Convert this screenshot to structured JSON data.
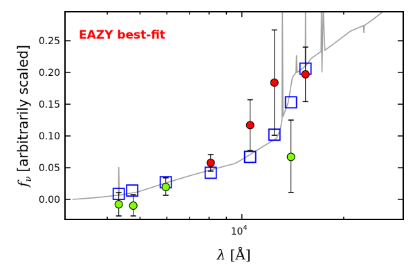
{
  "chart_data": {
    "type": "scatter",
    "annotation": "EAZY best-fit",
    "xlabel": "λ [Å]",
    "xlabel_symbol": "λ",
    "xlabel_unit": "[Å]",
    "ylabel": "f_ν [arbitrarily scaled]",
    "ylabel_symbol": "f",
    "ylabel_sub": "ν",
    "ylabel_text": "[arbitrarily scaled]",
    "xscale": "log",
    "xlim": [
      3000,
      30000
    ],
    "ylim": [
      -0.0315,
      0.2957
    ],
    "x_major_ticks": [
      {
        "value": 10000,
        "base": "10",
        "exp": "4"
      }
    ],
    "x_minor_ticks": [
      4000,
      5000,
      6000,
      7000,
      8000,
      9000,
      20000
    ],
    "y_ticks": [
      {
        "value": 0.0,
        "label": "0.00"
      },
      {
        "value": 0.05,
        "label": "0.05"
      },
      {
        "value": 0.1,
        "label": "0.10"
      },
      {
        "value": 0.15,
        "label": "0.15"
      },
      {
        "value": 0.2,
        "label": "0.20"
      },
      {
        "value": 0.25,
        "label": "0.25"
      }
    ],
    "colors": {
      "spectrum": "#a0a0a0",
      "model": "#0000ff",
      "detected": "#ff0000",
      "low": "#7fff00"
    },
    "spectrum": [
      [
        3155,
        0
      ],
      [
        3722,
        0.003
      ],
      [
        4285,
        0.0065
      ],
      [
        4320,
        0.0065
      ],
      [
        4325,
        0.051
      ],
      [
        4340,
        0.0065
      ],
      [
        4932,
        0.012
      ],
      [
        5957,
        0.026
      ],
      [
        7194,
        0.039
      ],
      [
        8283,
        0.048
      ],
      [
        9540,
        0.0565
      ],
      [
        10238,
        0.066
      ],
      [
        11514,
        0.083
      ],
      [
        12650,
        0.096
      ],
      [
        12950,
        0.108
      ],
      [
        13140,
        0.124
      ],
      [
        13180,
        0.3
      ],
      [
        13230,
        0.13
      ],
      [
        13710,
        0.153
      ],
      [
        14100,
        0.192
      ],
      [
        14450,
        0.2
      ],
      [
        14510,
        0.227
      ],
      [
        14560,
        0.2
      ],
      [
        15000,
        0.205
      ],
      [
        15400,
        0.21
      ],
      [
        15420,
        0.3
      ],
      [
        15450,
        0.21
      ],
      [
        16010,
        0.222
      ],
      [
        17150,
        0.233
      ],
      [
        17190,
        0.3
      ],
      [
        17250,
        0.2
      ],
      [
        17400,
        0.3
      ],
      [
        17600,
        0.235
      ],
      [
        18450,
        0.243
      ],
      [
        20940,
        0.265
      ],
      [
        22900,
        0.274
      ],
      [
        22950,
        0.262
      ],
      [
        23010,
        0.274
      ],
      [
        24480,
        0.284
      ],
      [
        26010,
        0.295
      ]
    ],
    "model_photometry": [
      {
        "x": 4325,
        "y": 0.0087
      },
      {
        "x": 4740,
        "y": 0.014
      },
      {
        "x": 5957,
        "y": 0.027
      },
      {
        "x": 8090,
        "y": 0.042
      },
      {
        "x": 10580,
        "y": 0.067
      },
      {
        "x": 12480,
        "y": 0.102
      },
      {
        "x": 13970,
        "y": 0.153
      },
      {
        "x": 15420,
        "y": 0.206
      }
    ],
    "observed": [
      {
        "x": 4325,
        "y": -0.0076,
        "lo": -0.026,
        "hi": 0.011,
        "kind": "low"
      },
      {
        "x": 4775,
        "y": -0.0098,
        "lo": -0.026,
        "hi": 0.0076,
        "kind": "low"
      },
      {
        "x": 5957,
        "y": 0.0196,
        "lo": 0.0065,
        "hi": 0.034,
        "kind": "low"
      },
      {
        "x": 8090,
        "y": 0.0576,
        "lo": 0.0446,
        "hi": 0.0707,
        "kind": "detected"
      },
      {
        "x": 10580,
        "y": 0.117,
        "lo": 0.077,
        "hi": 0.157,
        "kind": "detected"
      },
      {
        "x": 12480,
        "y": 0.184,
        "lo": 0.101,
        "hi": 0.267,
        "kind": "detected"
      },
      {
        "x": 13970,
        "y": 0.067,
        "lo": 0.011,
        "hi": 0.125,
        "kind": "low"
      },
      {
        "x": 15420,
        "y": 0.197,
        "lo": 0.154,
        "hi": 0.24,
        "kind": "detected"
      }
    ]
  }
}
